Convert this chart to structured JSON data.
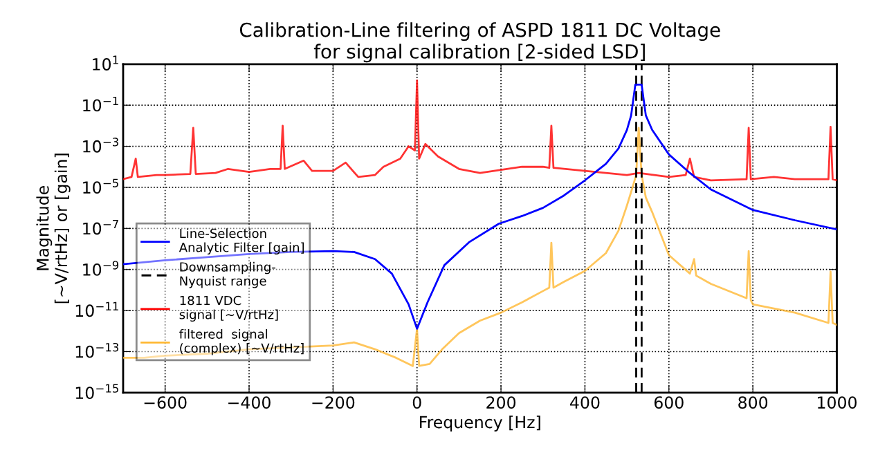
{
  "chart_data": {
    "type": "line",
    "title": "Calibration-Line filtering of ASPD 1811 DC Voltage\nfor signal calibration [2-sided LSD]",
    "xlabel": "Frequency [Hz]",
    "ylabel": "Magnitude\n[~V/rtHz] or [gain]",
    "log": "y",
    "grid": true,
    "legend": "left",
    "line_style": "solid",
    "marker": "none",
    "xlim": [
      -700,
      1000
    ],
    "xticks": [
      {
        "value": -600,
        "label": "−600"
      },
      {
        "value": -400,
        "label": "−400"
      },
      {
        "value": -200,
        "label": "−200"
      },
      0,
      200,
      400,
      600,
      800,
      1000
    ],
    "ylim": [
      1e-15,
      10
    ],
    "yticks": [
      {
        "value": 1e-15,
        "label": "10$^{−15}$"
      },
      {
        "value": 1e-13,
        "label": "10$^{−13}$"
      },
      {
        "value": 1e-11,
        "label": "10$^{−11}$"
      },
      {
        "value": 1e-09,
        "label": "10$^{−9}$"
      },
      {
        "value": 1e-07,
        "label": "10$^{−7}$"
      },
      {
        "value": 1e-05,
        "label": "10$^{−5}$"
      },
      {
        "value": 0.001,
        "label": "10$^{−3}$"
      },
      {
        "value": 0.1,
        "label": "10$^{−1}$"
      },
      {
        "value": 10,
        "label": "10$^{1}$"
      }
    ],
    "series": [
      {
        "name": "Line-Selection\nAnalytic Filter [gain]",
        "color": "#0000ff",
        "x": [
          -700,
          -600,
          -500,
          -400,
          -300,
          -200,
          -150,
          -100,
          -60,
          -20,
          0,
          25,
          65,
          125,
          195,
          250,
          300,
          350,
          400,
          450,
          480,
          500,
          510,
          520,
          535,
          545,
          560,
          600,
          650,
          700,
          800,
          900,
          1000
        ],
        "values": [
          1.8e-09,
          2.8e-09,
          4e-09,
          5.6e-09,
          7.1e-09,
          7.9e-09,
          7.1e-09,
          3.2e-09,
          6.3e-10,
          2e-11,
          1.3e-12,
          2.5e-11,
          1.6e-09,
          2.2e-08,
          1.7e-07,
          4e-07,
          1e-06,
          4e-06,
          2.2e-05,
          0.00014,
          0.00079,
          0.0063,
          0.032,
          1,
          1,
          0.032,
          0.0063,
          0.0004,
          5e-05,
          7.9e-06,
          7.9e-07,
          2.5e-07,
          8.9e-08
        ]
      },
      {
        "name": "Downsampling-\nNyquist range",
        "color": "#000000",
        "line_style": "dashed",
        "x": [
          522,
          522,
          null,
          535,
          535
        ],
        "values": [
          1e-15,
          10,
          null,
          1e-15,
          10
        ]
      },
      {
        "name": "1811 VDC\nsignal [~V/rtHz]",
        "color": "#ff0000",
        "x": [
          -700,
          -680,
          -670,
          -665,
          -620,
          -600,
          -540,
          -533,
          -527,
          -480,
          -450,
          -400,
          -350,
          -325,
          -320,
          -315,
          -270,
          -250,
          -200,
          -170,
          -140,
          -100,
          -80,
          -40,
          -20,
          -5,
          0,
          5,
          20,
          50,
          100,
          150,
          200,
          250,
          300,
          315,
          320,
          325,
          400,
          450,
          500,
          528,
          600,
          640,
          650,
          660,
          700,
          785,
          790,
          795,
          850,
          900,
          980,
          985,
          990,
          1000
        ],
        "values": [
          2.5e-05,
          3.2e-05,
          0.00025,
          3.2e-05,
          4e-05,
          4e-05,
          4.5e-05,
          0.0079,
          4.5e-05,
          5e-05,
          7.9e-05,
          5.6e-05,
          7.9e-05,
          7.9e-05,
          0.01,
          7.9e-05,
          0.0002,
          6.3e-05,
          6.3e-05,
          0.00016,
          3.2e-05,
          4e-05,
          0.0001,
          0.00025,
          0.001,
          0.00063,
          1.6,
          0.00025,
          0.0013,
          0.00032,
          7.9e-05,
          5e-05,
          7.1e-05,
          0.0001,
          0.0001,
          8.9e-05,
          0.01,
          8.9e-05,
          6.3e-05,
          5e-05,
          4e-05,
          5e-05,
          3.2e-05,
          4e-05,
          0.00025,
          3.2e-05,
          2.2e-05,
          2.5e-05,
          0.0079,
          2.5e-05,
          3.2e-05,
          2.5e-05,
          2.5e-05,
          0.0089,
          2.5e-05,
          2.2e-05
        ]
      },
      {
        "name": "filtered  signal\n(complex) [~V/rtHz]",
        "color": "#ffb833",
        "x": [
          -700,
          -650,
          -600,
          -500,
          -400,
          -300,
          -200,
          -150,
          -100,
          -50,
          -10,
          0,
          5,
          30,
          60,
          100,
          150,
          200,
          250,
          300,
          315,
          320,
          325,
          350,
          400,
          450,
          480,
          500,
          515,
          522,
          528,
          535,
          545,
          560,
          600,
          650,
          660,
          665,
          700,
          785,
          790,
          795,
          800,
          900,
          980,
          985,
          990,
          1000
        ],
        "values": [
          5e-14,
          5e-14,
          6.3e-14,
          7.9e-14,
          1.3e-13,
          1.6e-13,
          2e-13,
          2.8e-13,
          1.3e-13,
          5e-14,
          2e-14,
          1.3e-12,
          2e-14,
          2.5e-14,
          1.3e-13,
          7.9e-13,
          3.2e-12,
          7.9e-12,
          2.5e-11,
          8.9e-11,
          1.3e-10,
          2e-08,
          1.3e-10,
          2.5e-10,
          8.5e-10,
          6.3e-09,
          7.9e-08,
          1.3e-06,
          1.3e-05,
          4e-05,
          0.0079,
          4e-05,
          3.2e-06,
          6.3e-07,
          5e-09,
          6.3e-10,
          3.2e-09,
          5e-10,
          2e-10,
          4e-11,
          7.9e-09,
          3.2e-11,
          2e-11,
          7.9e-12,
          2.5e-12,
          7.9e-10,
          2.5e-12,
          2e-12
        ]
      }
    ]
  }
}
